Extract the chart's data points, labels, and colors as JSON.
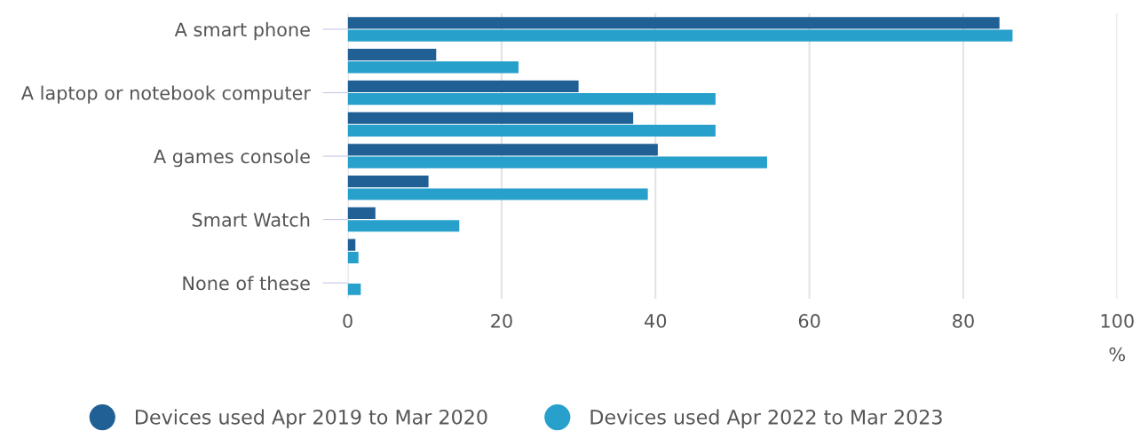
{
  "chart_data": {
    "type": "bar",
    "orientation": "horizontal",
    "xlabel": "%",
    "categories": [
      "A smart phone",
      null,
      "A laptop or notebook computer",
      null,
      "A games console",
      null,
      "Smart Watch",
      null,
      "None of these"
    ],
    "series": [
      {
        "name": "Devices used Apr 2019 to Mar 2020",
        "color": "#206095",
        "values": [
          84.7,
          11.5,
          30.0,
          37.1,
          40.3,
          10.5,
          3.6,
          1.0,
          null
        ]
      },
      {
        "name": "Devices used Apr 2022 to Mar 2023",
        "color": "#27a0cc",
        "values": [
          86.4,
          22.2,
          47.8,
          47.8,
          54.5,
          39.0,
          14.5,
          1.4,
          1.7
        ]
      }
    ],
    "xlim": [
      0,
      100
    ],
    "xticks": [
      0,
      20,
      40,
      60,
      80,
      100
    ],
    "grid": "x",
    "legend": "bottom"
  }
}
